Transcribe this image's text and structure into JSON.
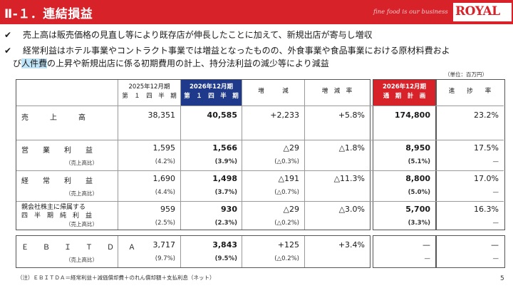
{
  "header": {
    "title": "Ⅱ-１．連結損益",
    "tagline": "fine food is our business",
    "logo_text": "ROYAL"
  },
  "bullets": [
    "売上高は販売価格の見直し等により既存店が伸長したことに加えて、新規出店が寄与し増収",
    {
      "pre": "経常利益はホテル事業やコントラクト事業では増益となったものの、外食事業や食品事業における原材料費およ",
      "line2_a": "び",
      "highlight": "人件費",
      "line2_b": "の上昇や新規出店に係る初期費用の計上、持分法利益の減少等により減益"
    }
  ],
  "unit_note": "（単位：百万円）",
  "table": {
    "headers": {
      "prev_l1": "2025年12月期",
      "prev_l2": "第　１　四　半　期",
      "curr_l1": "2026年12月期",
      "curr_l2": "第　１　四　半　期",
      "diff": "増　　　減",
      "rate": "増　減　率",
      "plan_l1": "2026年12月期",
      "plan_l2": "通　期　計　画",
      "progress": "進　　捗　　率"
    },
    "rows": [
      {
        "label": "売　　　上　　　高",
        "prev": "38,351",
        "curr": "40,585",
        "diff": "+2,233",
        "rate": "+5.8%",
        "plan": "174,800",
        "progress": "23.2%"
      },
      {
        "label": "営　　業　　利　　益",
        "sublabel": "（売上高比）",
        "prev": "1,595",
        "curr": "1,566",
        "diff": "△29",
        "rate": "△1.8%",
        "plan": "8,950",
        "progress": "17.5%",
        "prev_sub": "(4.2%)",
        "curr_sub": "(3.9%)",
        "diff_sub": "(△0.3%)",
        "plan_sub": "(5.1%)",
        "progress_sub": "—"
      },
      {
        "label": "経　　常　　利　　益",
        "sublabel": "（売上高比）",
        "prev": "1,690",
        "curr": "1,498",
        "diff": "△191",
        "rate": "△11.3%",
        "plan": "8,800",
        "progress": "17.0%",
        "prev_sub": "(4.4%)",
        "curr_sub": "(3.7%)",
        "diff_sub": "(△0.7%)",
        "plan_sub": "(5.0%)",
        "progress_sub": "—"
      },
      {
        "label": "親会社株主に帰属する",
        "label2": "四　半　期　純　利　益",
        "sublabel": "（売上高比）",
        "prev": "959",
        "curr": "930",
        "diff": "△29",
        "rate": "△3.0%",
        "plan": "5,700",
        "progress": "16.3%",
        "prev_sub": "(2.5%)",
        "curr_sub": "(2.3%)",
        "diff_sub": "(△0.2%)",
        "plan_sub": "(3.3%)",
        "progress_sub": "—"
      },
      {
        "label": "Ｅ　　Ｂ　　Ｉ　　Ｔ　　Ｄ　　Ａ",
        "sublabel": "（売上高比）",
        "prev": "3,717",
        "curr": "3,843",
        "diff": "+125",
        "rate": "+3.4%",
        "plan": "—",
        "progress": "—",
        "prev_sub": "(9.7%)",
        "curr_sub": "(9.5%)",
        "diff_sub": "(△0.2%)",
        "plan_sub": "—",
        "progress_sub": "—"
      }
    ]
  },
  "footnote": "（注）ＥＢＩＴＤＡ＝経常利益＋減価償却費＋のれん償却額＋支払利息（ネット）",
  "page_number": "5",
  "colors": {
    "brand_red": "#d7222a",
    "header_blue": "#1f3a8a",
    "highlight": "#bfe3f7"
  }
}
